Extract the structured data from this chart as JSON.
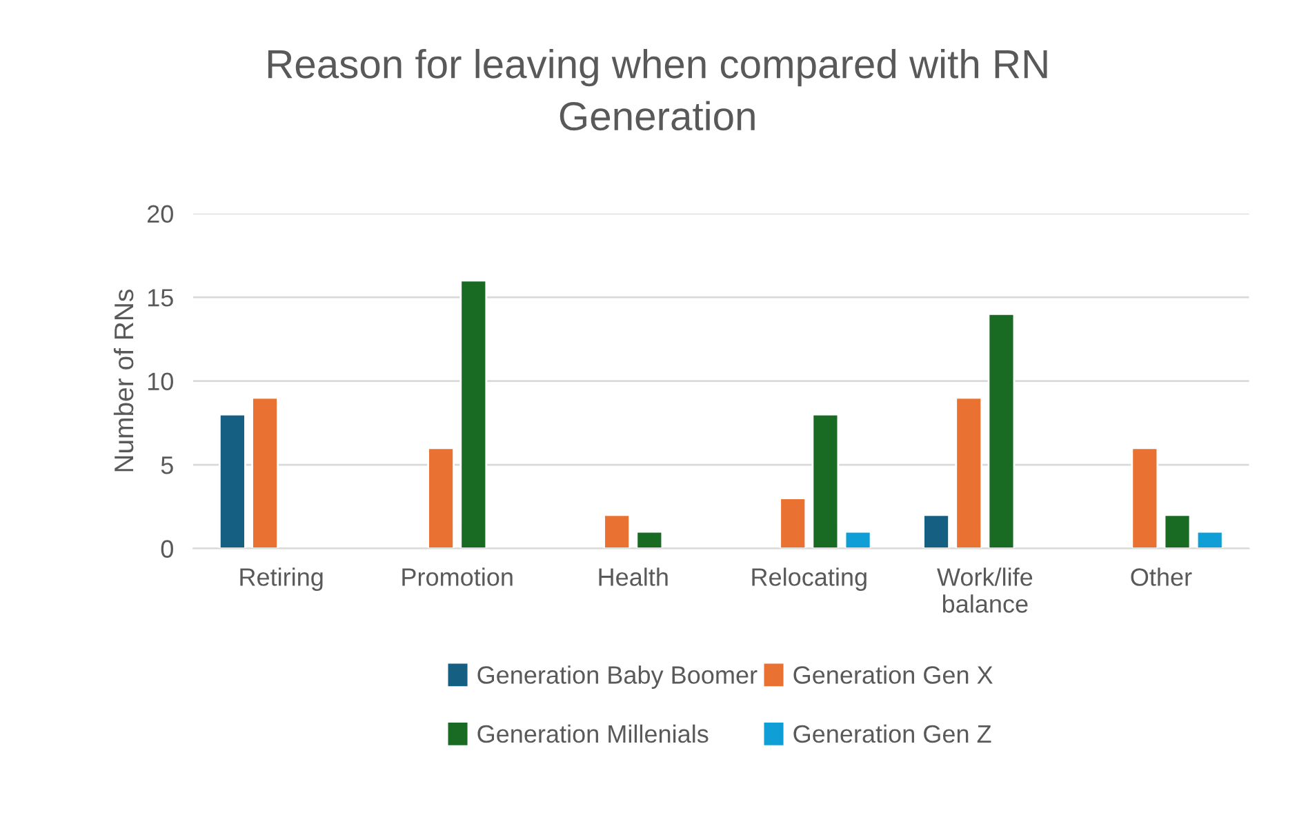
{
  "chart_data": {
    "type": "bar",
    "title": "Reason for leaving when compared with RN\nGeneration",
    "ylabel": "Number of RNs",
    "categories": [
      "Retiring",
      "Promotion",
      "Health",
      "Relocating",
      "Work/life\nbalance",
      "Other"
    ],
    "series": [
      {
        "name": "Generation Baby Boomer",
        "color": "#156082",
        "values": [
          8,
          null,
          null,
          null,
          2,
          null
        ]
      },
      {
        "name": "Generation Gen X",
        "color": "#e97132",
        "values": [
          9,
          6,
          2,
          3,
          9,
          6
        ]
      },
      {
        "name": "Generation Millenials",
        "color": "#196b24",
        "values": [
          null,
          16,
          1,
          8,
          14,
          2
        ]
      },
      {
        "name": "Generation Gen Z",
        "color": "#0f9ed5",
        "values": [
          null,
          null,
          null,
          1,
          null,
          1
        ]
      }
    ],
    "ylim": [
      0,
      20
    ],
    "yticks": [
      0,
      5,
      10,
      15,
      20
    ],
    "grid": "y",
    "legend": "bottom"
  }
}
